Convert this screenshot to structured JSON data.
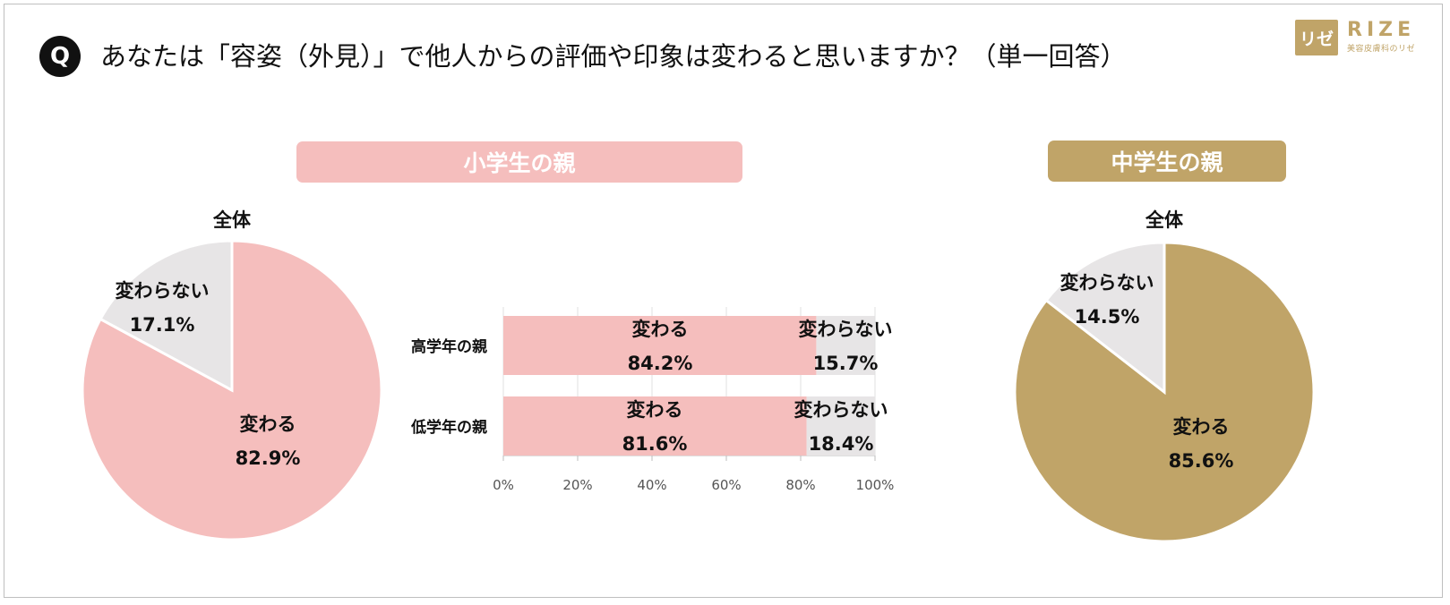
{
  "header": {
    "q_label": "Q",
    "question": "あなたは「容姿（外見）」で他人からの評価や印象は変わると思いますか？（単一回答）"
  },
  "logo": {
    "mark": "リゼ",
    "word": "RIZE",
    "tagline": "美容皮膚科のリゼ",
    "color": "#c0a468"
  },
  "panels": {
    "elementary": {
      "label": "小学生の親",
      "color": "#f5bebd"
    },
    "middle": {
      "label": "中学生の親",
      "color": "#c0a468"
    }
  },
  "colors": {
    "pink": "#f5bebd",
    "gold": "#c0a468",
    "gray": "#e7e5e6"
  },
  "chart_data": [
    {
      "type": "pie",
      "title": "全体",
      "panel": "小学生の親",
      "slices": [
        {
          "label": "変わる",
          "value": 82.9,
          "display": "82.9%",
          "color": "#f5bebd"
        },
        {
          "label": "変わらない",
          "value": 17.1,
          "display": "17.1%",
          "color": "#e7e5e6"
        }
      ]
    },
    {
      "type": "bar",
      "orientation": "horizontal",
      "stacked": true,
      "panel": "小学生の親",
      "categories": [
        "高学年の親",
        "低学年の親"
      ],
      "series": [
        {
          "name": "変わる",
          "values": [
            84.2,
            81.6
          ],
          "display": [
            "84.2%",
            "81.6%"
          ],
          "color": "#f5bebd"
        },
        {
          "name": "変わらない",
          "values": [
            15.7,
            18.4
          ],
          "display": [
            "15.7%",
            "18.4%"
          ],
          "color": "#e7e5e6"
        }
      ],
      "xlim": [
        0,
        100
      ],
      "xticks": [
        "0%",
        "20%",
        "40%",
        "60%",
        "80%",
        "100%"
      ],
      "grid": true
    },
    {
      "type": "pie",
      "title": "全体",
      "panel": "中学生の親",
      "slices": [
        {
          "label": "変わる",
          "value": 85.6,
          "display": "85.6%",
          "color": "#c0a468"
        },
        {
          "label": "変わらない",
          "value": 14.5,
          "display": "14.5%",
          "color": "#e7e5e6"
        }
      ]
    }
  ]
}
